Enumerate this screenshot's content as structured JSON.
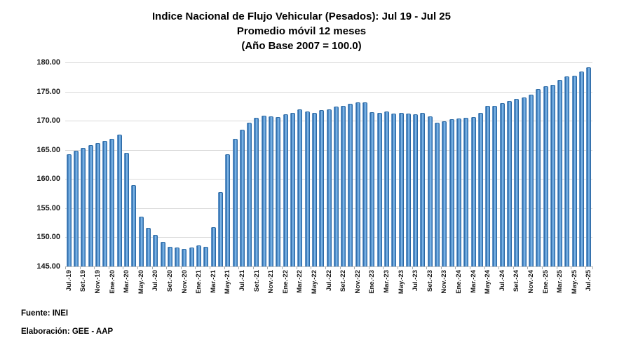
{
  "title": {
    "line1": "Indice Nacional de Flujo Vehicular (Pesados): Jul 19 - Jul 25",
    "line2": "Promedio móvil 12 meses",
    "line3": "(Año Base 2007 = 100.0)"
  },
  "footer": {
    "source": "Fuente: INEI",
    "elaboration": "Elaboración: GEE - AAP"
  },
  "chart_data": {
    "type": "bar",
    "title": "Indice Nacional de Flujo Vehicular (Pesados): Jul 19 - Jul 25 / Promedio móvil 12 meses / (Año Base 2007 = 100.0)",
    "ylim": [
      145,
      180
    ],
    "y_tick_step": 5,
    "y_tick_labels": [
      "180.00",
      "175.00",
      "170.00",
      "165.00",
      "160.00",
      "155.00",
      "150.00",
      "145.00"
    ],
    "x_tick_interval": 2,
    "x_tick_labels": [
      "Jul.-19",
      "Set.-19",
      "Nov.-19",
      "Ene.-20",
      "Mar.-20",
      "May.-20",
      "Jul.-20",
      "Set.-20",
      "Nov.-20",
      "Ene.-21",
      "Mar.-21",
      "May.-21",
      "Jul.-21",
      "Set.-21",
      "Nov.-21",
      "Ene.-22",
      "Mar.-22",
      "May.-22",
      "Jul.-22",
      "Set.-22",
      "Nov.-22",
      "Ene.-23",
      "Mar.-23",
      "May.-23",
      "Jul.-23",
      "Set.-23",
      "Nov.-23",
      "Ene.-24",
      "Mar.-24",
      "May.-24",
      "Jul.-24",
      "Set.-24",
      "Nov.-24",
      "Ene.-25",
      "Mar.-25",
      "May.-25",
      "Jul.-25"
    ],
    "grid": true,
    "legend": "none",
    "categories": [
      "Jul.-19",
      "Ago.-19",
      "Set.-19",
      "Oct.-19",
      "Nov.-19",
      "Dic.-19",
      "Ene.-20",
      "Feb.-20",
      "Mar.-20",
      "Abr.-20",
      "May.-20",
      "Jun.-20",
      "Jul.-20",
      "Ago.-20",
      "Set.-20",
      "Oct.-20",
      "Nov.-20",
      "Dic.-20",
      "Ene.-21",
      "Feb.-21",
      "Mar.-21",
      "Abr.-21",
      "May.-21",
      "Jun.-21",
      "Jul.-21",
      "Ago.-21",
      "Set.-21",
      "Oct.-21",
      "Nov.-21",
      "Dic.-21",
      "Ene.-22",
      "Feb.-22",
      "Mar.-22",
      "Abr.-22",
      "May.-22",
      "Jun.-22",
      "Jul.-22",
      "Ago.-22",
      "Set.-22",
      "Oct.-22",
      "Nov.-22",
      "Dic.-22",
      "Ene.-23",
      "Feb.-23",
      "Mar.-23",
      "Abr.-23",
      "May.-23",
      "Jun.-23",
      "Jul.-23",
      "Ago.-23",
      "Set.-23",
      "Oct.-23",
      "Nov.-23",
      "Dic.-23",
      "Ene.-24",
      "Feb.-24",
      "Mar.-24",
      "Abr.-24",
      "May.-24",
      "Jun.-24",
      "Jul.-24",
      "Ago.-24",
      "Set.-24",
      "Oct.-24",
      "Nov.-24",
      "Dic.-24",
      "Ene.-25",
      "Feb.-25",
      "Mar.-25",
      "Abr.-25",
      "May.-25",
      "Jun.-25",
      "Jul.-25"
    ],
    "values": [
      164.3,
      164.8,
      165.3,
      165.8,
      166.2,
      166.5,
      166.9,
      167.6,
      164.5,
      158.9,
      153.6,
      151.6,
      150.4,
      149.2,
      148.4,
      148.3,
      148.0,
      148.3,
      148.6,
      148.4,
      151.7,
      157.8,
      164.2,
      166.9,
      168.4,
      169.7,
      170.5,
      170.9,
      170.8,
      170.6,
      171.1,
      171.4,
      172.0,
      171.6,
      171.4,
      171.8,
      172.0,
      172.4,
      172.6,
      172.9,
      173.1,
      173.1,
      171.5,
      171.3,
      171.6,
      171.2,
      171.4,
      171.2,
      171.1,
      171.3,
      170.7,
      169.7,
      169.9,
      170.2,
      170.4,
      170.5,
      170.6,
      171.4,
      172.5,
      172.5,
      173.0,
      173.4,
      173.7,
      174.0,
      174.5,
      175.4,
      175.9,
      176.1,
      177.0,
      177.6,
      177.7,
      178.4,
      179.1
    ],
    "colors": {
      "bar_main": "#4d8cc9",
      "bar_dark": "#2d6aa8",
      "bar_light": "#8cc0ec",
      "gridline": "#d9d9d9",
      "axis_text": "#1a1a1a",
      "title_text": "#000000"
    }
  }
}
